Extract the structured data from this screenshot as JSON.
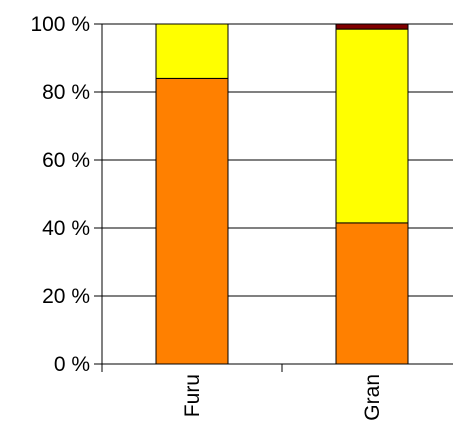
{
  "chart_data": {
    "type": "bar",
    "stacked": true,
    "categories": [
      "Furu",
      "Gran"
    ],
    "series": [
      {
        "values": [
          84,
          41.5
        ],
        "color": "#ff8000"
      },
      {
        "values": [
          16,
          57
        ],
        "color": "#ffff00"
      },
      {
        "values": [
          0,
          1.5
        ],
        "color": "#800000"
      }
    ],
    "ylim": [
      0,
      100
    ],
    "yticks": [
      "0 %",
      "20 %",
      "40 %",
      "60 %",
      "80 %",
      "100 %"
    ],
    "ytick_values": [
      0,
      20,
      40,
      60,
      80,
      100
    ],
    "grid": true,
    "title": "",
    "xlabel": "",
    "ylabel": ""
  }
}
